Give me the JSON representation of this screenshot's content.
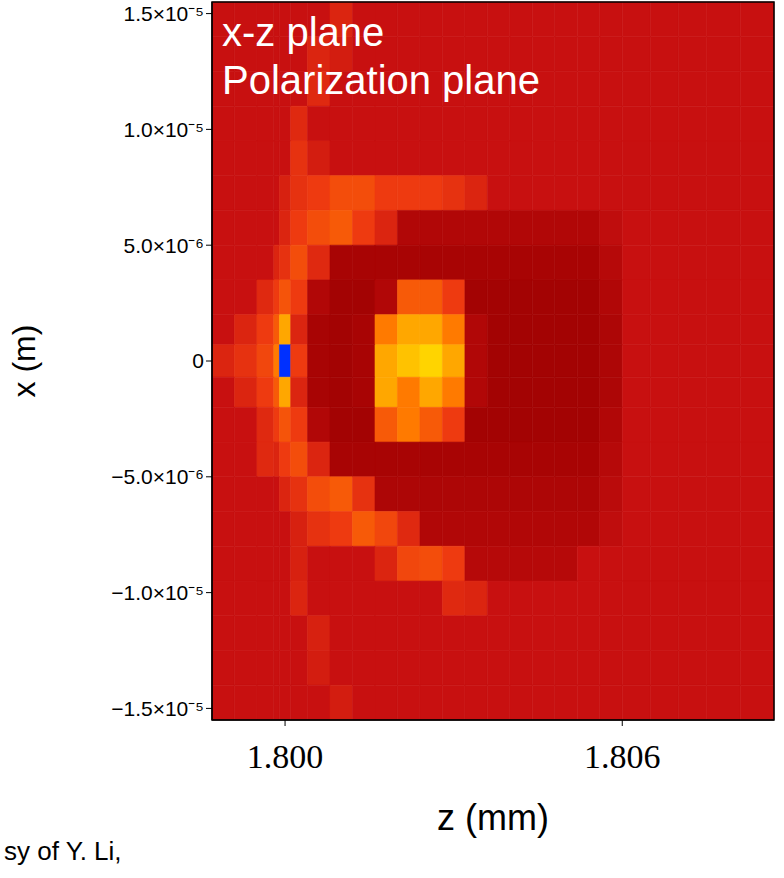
{
  "chart_data": {
    "type": "heatmap",
    "annotations": [
      "x-z plane",
      "Polarization plane",
      "sy of Y. Li,"
    ],
    "x_label": "z (mm)",
    "y_label": "x (m)",
    "xlim": [
      1.7987,
      1.8087
    ],
    "ylim": [
      -1.55e-05,
      1.55e-05
    ],
    "xticks": [
      {
        "value": 1.8,
        "label": "1.800"
      },
      {
        "value": 1.806,
        "label": "1.806"
      }
    ],
    "yticks": [
      {
        "value": 1.5e-05,
        "label": "1.5×10⁻⁵"
      },
      {
        "value": 1e-05,
        "label": "1.0×10⁻⁵"
      },
      {
        "value": 5e-06,
        "label": "5.0×10⁻⁶"
      },
      0,
      {
        "value": -5e-06,
        "label": "−5.0×10⁻⁶"
      },
      {
        "value": -1e-05,
        "label": "−1.0×10⁻⁵"
      },
      {
        "value": -1.5e-05,
        "label": "−1.5×10⁻⁵"
      }
    ],
    "column_edges": [
      1.7987,
      1.7991,
      1.7995,
      1.7998,
      1.7999,
      1.8001,
      1.8004,
      1.8008,
      1.8012,
      1.8016,
      1.802,
      1.8024,
      1.8028,
      1.8032,
      1.8036,
      1.804,
      1.8044,
      1.8048,
      1.8052,
      1.8056,
      1.806,
      1.8065,
      1.807,
      1.8075,
      1.8081,
      1.8087
    ],
    "row_edges": [
      1.55e-05,
      1.4e-05,
      1.25e-05,
      1.1e-05,
      9.5e-06,
      8e-06,
      6.5e-06,
      5e-06,
      3.5e-06,
      2e-06,
      7e-07,
      -7e-07,
      -2e-06,
      -3.5e-06,
      -5e-06,
      -6.5e-06,
      -8e-06,
      -9.5e-06,
      -1.1e-05,
      -1.25e-05,
      -1.4e-05,
      -1.55e-05
    ],
    "cells": [
      [
        4,
        4,
        4,
        4,
        4,
        4,
        4,
        4.5,
        4,
        4,
        4,
        4,
        4,
        4,
        4,
        4,
        4,
        4,
        4,
        4,
        4,
        4,
        4,
        4,
        4
      ],
      [
        4,
        4,
        4,
        4,
        4,
        4,
        4.5,
        4.3,
        4,
        4,
        4,
        4,
        4,
        4,
        4,
        4,
        4,
        4,
        4,
        4,
        4,
        4,
        4,
        4,
        4
      ],
      [
        4,
        4,
        4,
        4,
        4,
        4,
        4.6,
        4,
        4,
        4,
        4,
        4,
        4,
        4,
        4,
        4,
        4,
        4,
        4,
        4,
        4,
        4,
        4,
        4,
        4
      ],
      [
        4,
        4,
        4,
        4,
        4,
        4.6,
        4,
        4,
        4,
        4,
        4,
        4,
        4,
        4,
        4,
        4,
        4,
        4,
        4,
        4,
        4,
        4,
        4,
        4,
        4
      ],
      [
        4,
        4,
        4,
        4,
        4,
        4.8,
        4.3,
        4,
        4,
        4,
        4,
        4,
        4,
        4,
        4,
        4,
        4,
        4,
        4,
        4,
        4,
        4,
        4,
        4,
        4
      ],
      [
        4,
        4,
        4,
        4,
        4.4,
        4.8,
        5,
        5.3,
        5.3,
        5,
        5,
        5,
        4.8,
        4.5,
        4,
        4,
        4,
        4,
        4,
        4,
        4,
        4,
        4,
        4,
        4
      ],
      [
        4,
        4,
        4,
        4,
        4.5,
        5,
        5.3,
        5.5,
        5,
        4.5,
        3.5,
        3.5,
        3.5,
        3.5,
        3.5,
        3.5,
        3.5,
        3.5,
        3.5,
        3.8,
        4,
        4,
        4,
        4,
        4
      ],
      [
        4,
        4,
        4,
        4.5,
        4.8,
        5.3,
        4.6,
        3.3,
        3.3,
        3.3,
        3.3,
        3.3,
        3.3,
        3.3,
        3.3,
        3.3,
        3.3,
        3.3,
        3.3,
        3.6,
        4,
        4,
        4,
        4,
        4
      ],
      [
        4,
        4,
        4.6,
        5,
        5.4,
        5,
        3.5,
        3.2,
        3.2,
        3.5,
        5.5,
        5.5,
        5,
        3.2,
        3.2,
        3.2,
        3.2,
        3.2,
        3.2,
        3.5,
        4,
        4,
        4,
        4,
        4
      ],
      [
        4,
        4.5,
        5,
        5.5,
        6.5,
        4.5,
        3.3,
        3.2,
        3.3,
        6,
        6.5,
        6.5,
        6,
        3.5,
        3.2,
        3.2,
        3.2,
        3.2,
        3.2,
        3.4,
        4,
        4,
        4,
        4,
        4
      ],
      [
        4.5,
        4.8,
        5.2,
        6,
        10,
        5,
        3.3,
        3.2,
        3.3,
        6.5,
        6.8,
        7,
        6.5,
        3.5,
        3.2,
        3.2,
        3.2,
        3.2,
        3.2,
        3.4,
        4,
        4,
        4,
        4,
        4
      ],
      [
        4,
        4.5,
        5,
        5.5,
        6.5,
        4.5,
        3.3,
        3.2,
        3.3,
        6.5,
        6,
        6.5,
        6,
        3.5,
        3.2,
        3.2,
        3.2,
        3.2,
        3.2,
        3.4,
        4,
        4,
        4,
        4,
        4
      ],
      [
        4,
        4,
        4.6,
        5,
        5.4,
        5,
        3.5,
        3.2,
        3.2,
        5.5,
        6,
        5.5,
        5,
        3.2,
        3.2,
        3.2,
        3.2,
        3.2,
        3.2,
        3.5,
        4,
        4,
        4,
        4,
        4
      ],
      [
        4,
        4,
        4.6,
        4.5,
        5,
        5.3,
        4.5,
        3.3,
        3.3,
        3.3,
        3.3,
        3.3,
        3.3,
        3.3,
        3.3,
        3.3,
        3.3,
        3.3,
        3.3,
        3.6,
        4,
        4,
        4,
        4,
        4
      ],
      [
        4,
        4,
        4,
        4,
        4.5,
        4.8,
        5.3,
        5.5,
        4.8,
        3.4,
        3.4,
        3.4,
        3.4,
        3.4,
        3.4,
        3.4,
        3.4,
        3.4,
        3.4,
        3.7,
        4,
        4,
        4,
        4,
        4
      ],
      [
        4,
        4,
        4,
        4,
        4,
        4.4,
        4.8,
        5,
        5.5,
        5.2,
        4.6,
        3.5,
        3.5,
        3.5,
        3.5,
        3.5,
        3.5,
        3.5,
        3.5,
        3.8,
        4,
        4,
        4,
        4,
        4
      ],
      [
        4,
        4,
        4,
        4,
        4,
        4.4,
        4,
        4,
        4,
        4.5,
        5.2,
        5.3,
        5,
        3.6,
        3.6,
        3.6,
        3.6,
        3.6,
        4,
        4,
        4,
        4,
        4,
        4,
        4
      ],
      [
        4,
        4,
        4,
        4,
        4,
        4.5,
        4,
        4,
        4,
        4,
        4,
        4,
        4.6,
        4.5,
        4,
        4,
        4,
        4,
        4,
        4,
        4,
        4,
        4,
        4,
        4
      ],
      [
        4,
        4,
        4,
        4,
        4,
        4,
        4.4,
        4,
        4,
        4,
        4,
        4,
        4,
        4,
        4,
        4,
        4,
        4,
        4,
        4,
        4,
        4,
        4,
        4,
        4
      ],
      [
        4,
        4,
        4,
        4,
        4,
        4,
        4.3,
        4,
        4,
        4,
        4,
        4,
        4,
        4,
        4,
        4,
        4,
        4,
        4,
        4,
        4,
        4,
        4,
        4,
        4
      ],
      [
        4,
        4,
        4,
        4,
        4,
        4,
        4,
        4.3,
        4,
        4,
        4,
        4,
        4,
        4,
        4,
        4,
        4,
        4,
        4,
        4,
        4,
        4,
        4,
        4,
        4
      ]
    ],
    "color_range": [
      0,
      10
    ]
  }
}
